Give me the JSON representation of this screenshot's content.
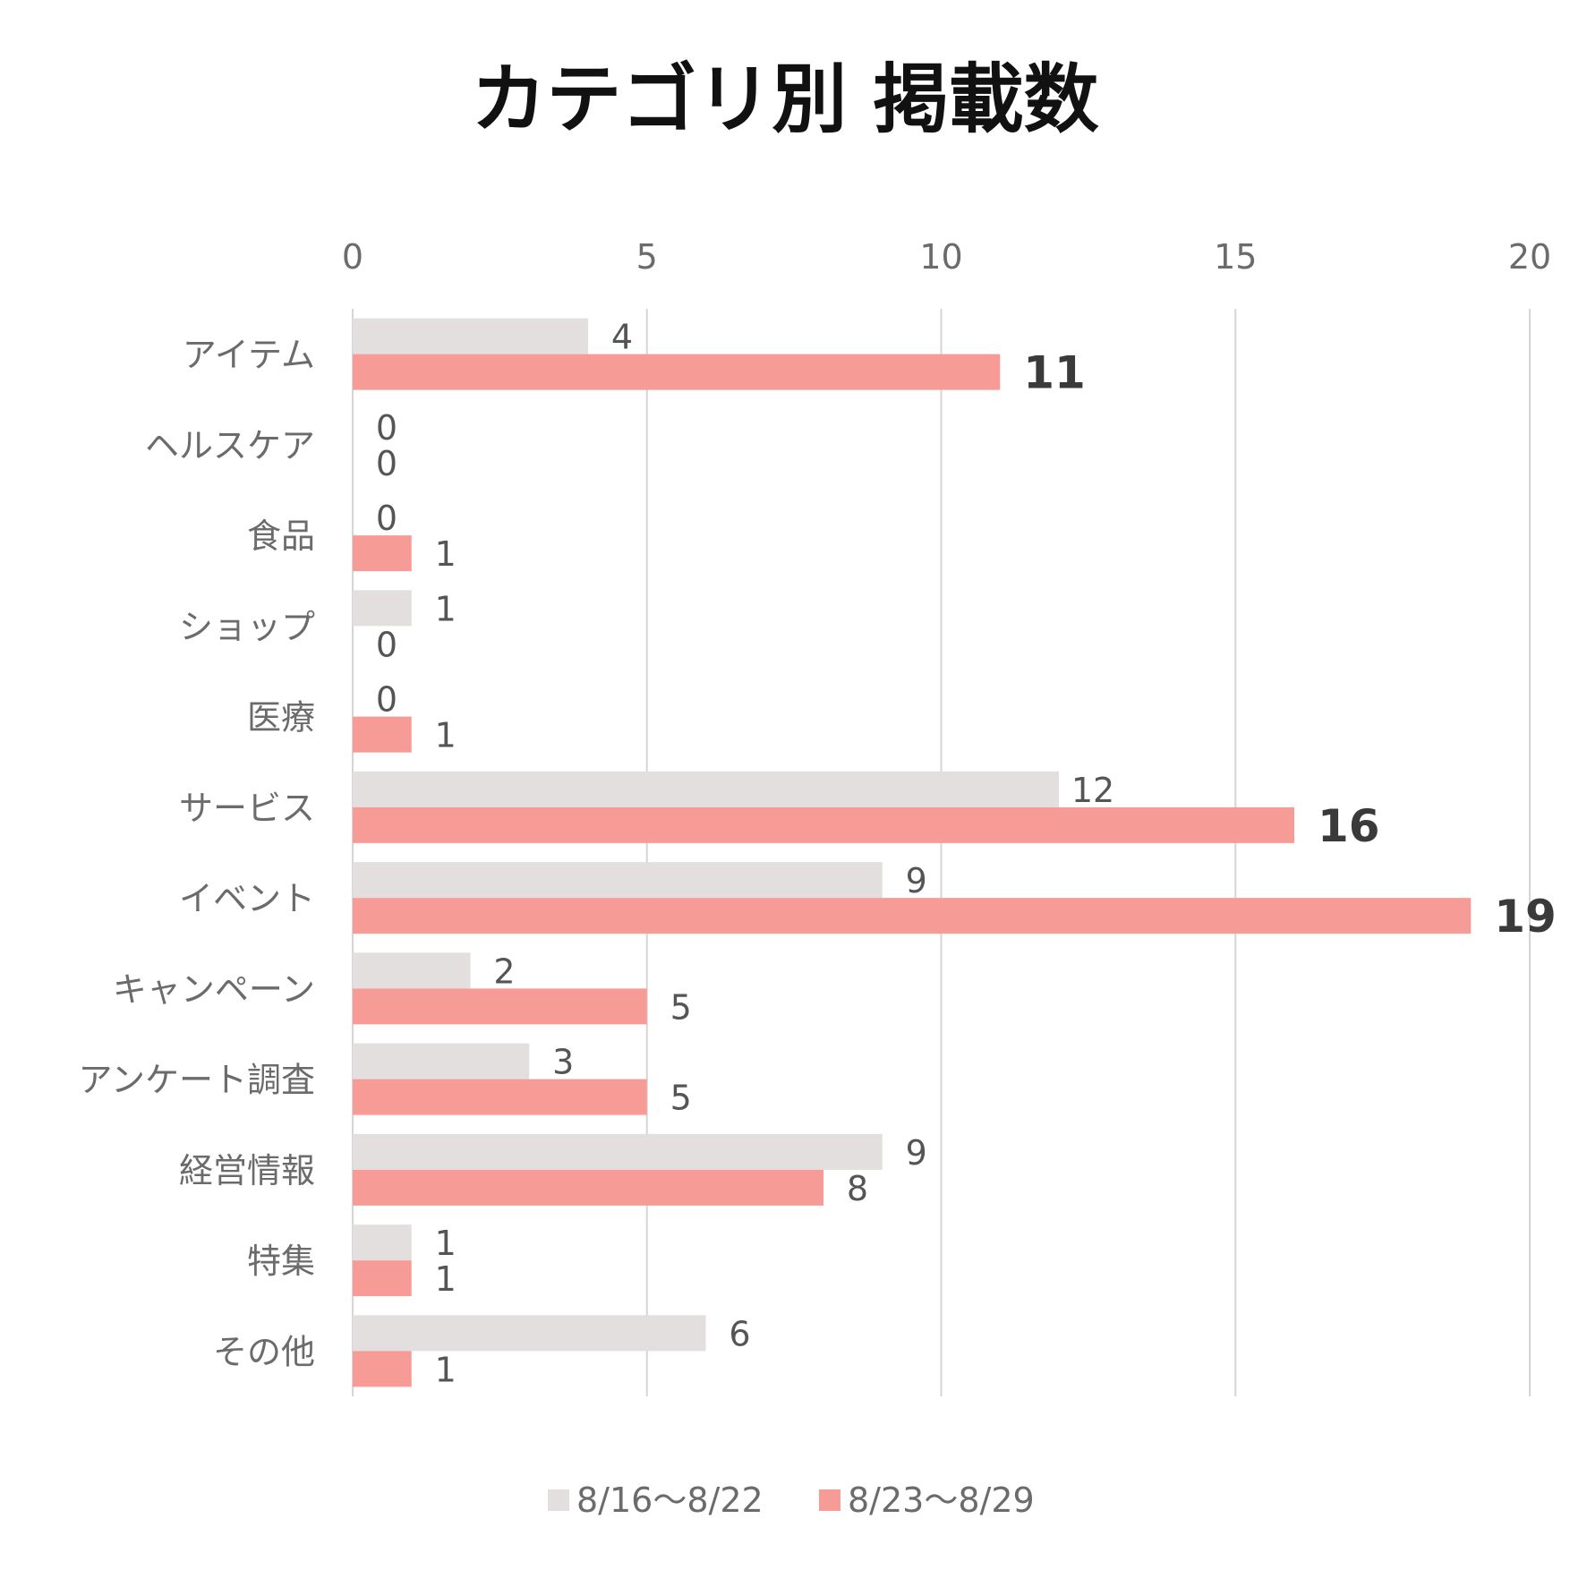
{
  "chart_data": {
    "type": "bar",
    "orientation": "horizontal",
    "title": "カテゴリ別 掲載数",
    "categories": [
      "アイテム",
      "ヘルスケア",
      "食品",
      "ショップ",
      "医療",
      "サービス",
      "イベント",
      "キャンペーン",
      "アンケート調査",
      "経営情報",
      "特集",
      "その他"
    ],
    "series": [
      {
        "name": "8/16〜8/22",
        "color": "#e2dfde",
        "values": [
          4,
          0,
          0,
          1,
          0,
          12,
          9,
          2,
          3,
          9,
          1,
          6
        ]
      },
      {
        "name": "8/23〜8/29",
        "color": "#f79b96",
        "values": [
          11,
          0,
          1,
          0,
          1,
          16,
          19,
          5,
          5,
          8,
          1,
          1
        ]
      }
    ],
    "emphasized_labels": [
      {
        "series": 1,
        "category": 0
      },
      {
        "series": 1,
        "category": 5
      },
      {
        "series": 1,
        "category": 6
      }
    ],
    "xlim": [
      0,
      20
    ],
    "xticks": [
      0,
      5,
      10,
      15,
      20
    ],
    "xaxis_position": "top",
    "grid": true,
    "legend_position": "bottom"
  }
}
